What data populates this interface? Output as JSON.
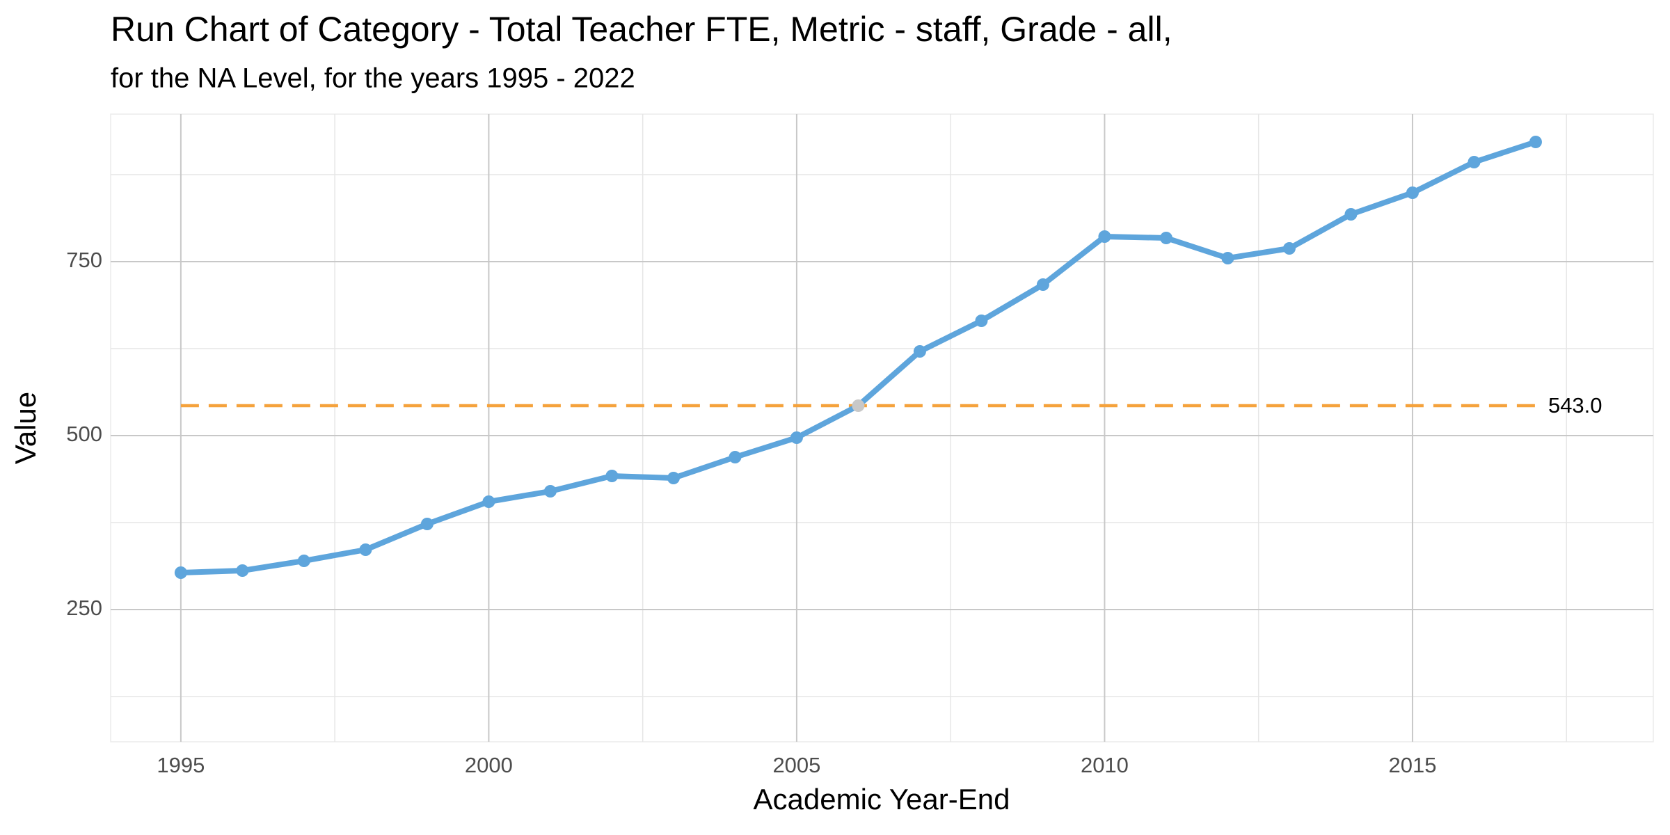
{
  "chart_data": {
    "type": "line",
    "title": "Run Chart of Category - Total Teacher FTE, Metric - staff, Grade - all,",
    "subtitle": "for the NA Level, for the years 1995 - 2022",
    "x_label": "Academic Year-End",
    "y_label": "Value",
    "x": [
      1995,
      1996,
      1997,
      1998,
      1999,
      2000,
      2001,
      2002,
      2003,
      2004,
      2005,
      2006,
      2007,
      2008,
      2009,
      2010,
      2011,
      2012,
      2013,
      2014,
      2015,
      2016,
      2017
    ],
    "series": [
      {
        "name": "Value",
        "color": "#5ea5dc",
        "values": [
          303,
          306,
          320,
          336,
          373,
          405,
          420,
          442,
          439,
          469,
          497,
          543,
          621,
          665,
          717,
          786,
          784,
          755,
          769,
          818,
          849,
          893,
          922
        ]
      }
    ],
    "median": {
      "value": 543,
      "label": "543.0",
      "color": "#f5a23c"
    },
    "on_median_color": "#c8c8c8",
    "xlim": [
      1993.86,
      2018.91
    ],
    "ylim": [
      60,
      962
    ],
    "xticks": [
      1995,
      2000,
      2005,
      2010,
      2015
    ],
    "yticks": [
      250,
      500,
      750
    ],
    "minor_xticks": [
      1997.5,
      2002.5,
      2007.5,
      2012.5,
      2017.5
    ],
    "minor_yticks": [
      125,
      375,
      625,
      875
    ],
    "grid": true
  }
}
